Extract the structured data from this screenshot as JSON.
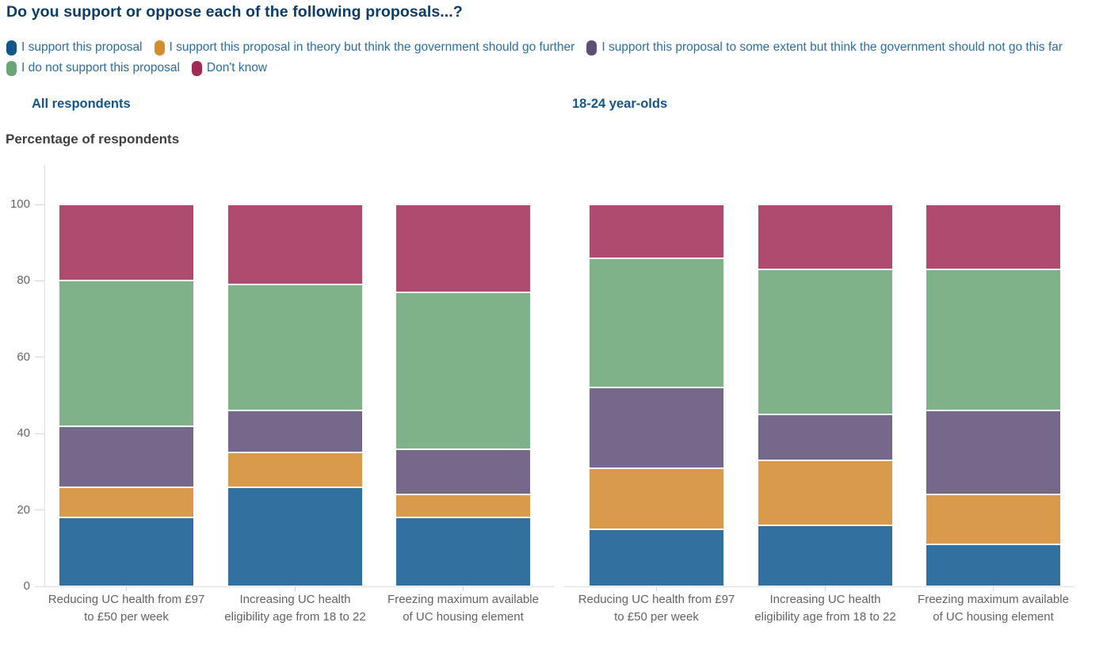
{
  "chart_data": {
    "type": "bar",
    "stacked": true,
    "unit": "percent",
    "title": "Do you support or oppose each of the following proposals...?",
    "ylabel": "Percentage of respondents",
    "xlabel": "",
    "ylim": [
      0,
      100
    ],
    "yticks": [
      0,
      20,
      40,
      60,
      80,
      100
    ],
    "grid": false,
    "legend_position": "top",
    "categories": [
      "Reducing UC health from £97 to £50 per week",
      "Increasing UC health eligibility age from 18 to 22",
      "Freezing maximum available of UC housing element"
    ],
    "series": [
      {
        "name": "I support this proposal",
        "swatch_color": "#13568a",
        "bar_color": "#3270a0"
      },
      {
        "name": "I support this proposal in theory but think the government should go further",
        "swatch_color": "#d28e2b",
        "bar_color": "#d99a4c"
      },
      {
        "name": "I support this proposal to some extent but think the government should not go this far",
        "swatch_color": "#5d4e77",
        "bar_color": "#75688b"
      },
      {
        "name": "I do not support this proposal",
        "swatch_color": "#69a576",
        "bar_color": "#7fb289"
      },
      {
        "name": "Don't know",
        "swatch_color": "#a22b55",
        "bar_color": "#af4b6e"
      }
    ],
    "facets": [
      {
        "subtitle": "All respondents",
        "values": [
          [
            18,
            26,
            18
          ],
          [
            8,
            9,
            6
          ],
          [
            16,
            11,
            12
          ],
          [
            38,
            33,
            41
          ],
          [
            20,
            21,
            23
          ]
        ]
      },
      {
        "subtitle": "18-24 year-olds",
        "values": [
          [
            15,
            16,
            11
          ],
          [
            16,
            17,
            13
          ],
          [
            21,
            12,
            22
          ],
          [
            34,
            38,
            37
          ],
          [
            14,
            17,
            17
          ]
        ]
      }
    ]
  }
}
